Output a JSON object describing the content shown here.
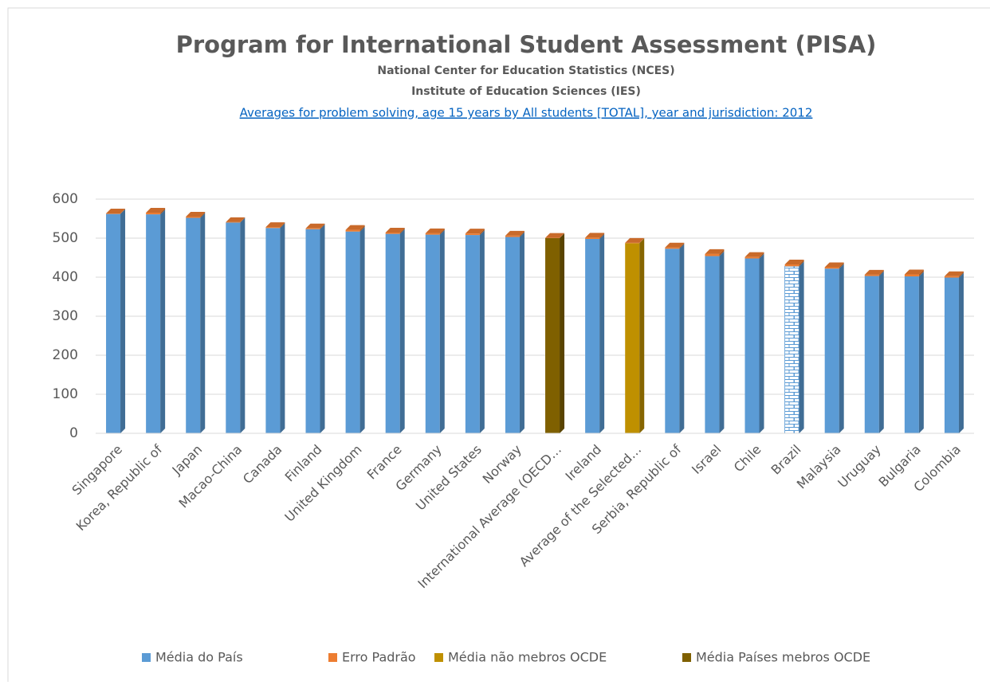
{
  "chart_data": {
    "type": "bar3d_stacked",
    "title": "Program for International Student Assessment (PISA)",
    "subtitle": [
      "National Center for Education Statistics (NCES)",
      "Institute of Education Sciences (IES)",
      "Averages for problem solving, age 15 years by All students [TOTAL], year and jurisdiction: 2012"
    ],
    "categories": [
      "Singapore",
      "Korea, Republic of",
      "Japan",
      "Macao-China",
      "Canada",
      "Finland",
      "United Kingdom",
      "France",
      "Germany",
      "United States",
      "Norway",
      "International Average (OECD…",
      "Ireland",
      "Average of the Selected…",
      "Serbia, Republic of",
      "Israel",
      "Chile",
      "Brazil",
      "Malaysia",
      "Uruguay",
      "Bulgaria",
      "Colombia"
    ],
    "series": [
      {
        "name": "Média do País",
        "color": "#5b9bd5",
        "values": [
          562,
          561,
          552,
          540,
          526,
          523,
          517,
          511,
          509,
          508,
          503,
          null,
          498,
          null,
          473,
          454,
          448,
          428,
          422,
          403,
          402,
          399
        ]
      },
      {
        "name": "Erro Padrão",
        "color": "#ed7d31",
        "values": [
          1.2,
          4.3,
          3.1,
          1.0,
          2.4,
          1.9,
          4.2,
          3.4,
          3.6,
          3.9,
          3.3,
          0.7,
          3.2,
          1.0,
          3.1,
          5.5,
          3.7,
          4.7,
          3.5,
          3.5,
          5.1,
          3.5
        ]
      },
      {
        "name": "Média não mebros OCDE",
        "color": "#bf9000",
        "values": [
          null,
          null,
          null,
          null,
          null,
          null,
          null,
          null,
          null,
          null,
          null,
          null,
          null,
          487,
          null,
          null,
          null,
          null,
          null,
          null,
          null,
          null
        ]
      },
      {
        "name": "Média Países mebros OCDE",
        "color": "#7f6000",
        "values": [
          null,
          null,
          null,
          null,
          null,
          null,
          null,
          null,
          null,
          null,
          null,
          500,
          null,
          null,
          null,
          null,
          null,
          null,
          null,
          null,
          null,
          null
        ]
      }
    ],
    "brick_categories": [
      "Brazil"
    ],
    "ylim": [
      0,
      600
    ],
    "yticks": [
      0,
      100,
      200,
      300,
      400,
      500,
      600
    ],
    "grid": true,
    "legend": "bottom"
  }
}
